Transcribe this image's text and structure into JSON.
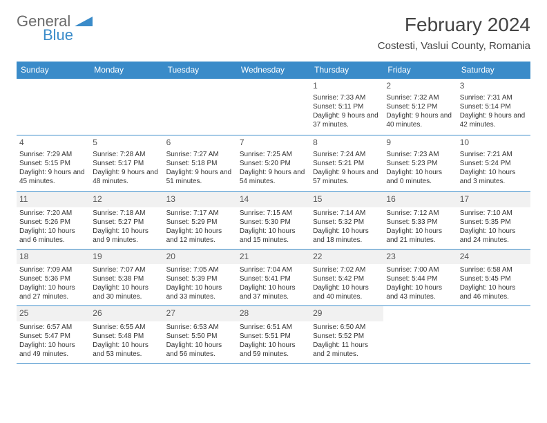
{
  "logo": {
    "top": "General",
    "bottom": "Blue"
  },
  "title": "February 2024",
  "location": "Costesti, Vaslui County, Romania",
  "colors": {
    "header_bg": "#3a8bc9",
    "header_text": "#ffffff",
    "border": "#3a8bc9",
    "text": "#333333",
    "logo_gray": "#6b6b6b",
    "logo_blue": "#3a8bc9",
    "alt_bg": "#f1f1f1"
  },
  "weekdays": [
    "Sunday",
    "Monday",
    "Tuesday",
    "Wednesday",
    "Thursday",
    "Friday",
    "Saturday"
  ],
  "weeks": [
    [
      null,
      null,
      null,
      null,
      {
        "n": "1",
        "sr": "7:33 AM",
        "ss": "5:11 PM",
        "dl": "9 hours and 37 minutes."
      },
      {
        "n": "2",
        "sr": "7:32 AM",
        "ss": "5:12 PM",
        "dl": "9 hours and 40 minutes."
      },
      {
        "n": "3",
        "sr": "7:31 AM",
        "ss": "5:14 PM",
        "dl": "9 hours and 42 minutes."
      }
    ],
    [
      {
        "n": "4",
        "sr": "7:29 AM",
        "ss": "5:15 PM",
        "dl": "9 hours and 45 minutes."
      },
      {
        "n": "5",
        "sr": "7:28 AM",
        "ss": "5:17 PM",
        "dl": "9 hours and 48 minutes."
      },
      {
        "n": "6",
        "sr": "7:27 AM",
        "ss": "5:18 PM",
        "dl": "9 hours and 51 minutes."
      },
      {
        "n": "7",
        "sr": "7:25 AM",
        "ss": "5:20 PM",
        "dl": "9 hours and 54 minutes."
      },
      {
        "n": "8",
        "sr": "7:24 AM",
        "ss": "5:21 PM",
        "dl": "9 hours and 57 minutes."
      },
      {
        "n": "9",
        "sr": "7:23 AM",
        "ss": "5:23 PM",
        "dl": "10 hours and 0 minutes."
      },
      {
        "n": "10",
        "sr": "7:21 AM",
        "ss": "5:24 PM",
        "dl": "10 hours and 3 minutes."
      }
    ],
    [
      {
        "n": "11",
        "sr": "7:20 AM",
        "ss": "5:26 PM",
        "dl": "10 hours and 6 minutes."
      },
      {
        "n": "12",
        "sr": "7:18 AM",
        "ss": "5:27 PM",
        "dl": "10 hours and 9 minutes."
      },
      {
        "n": "13",
        "sr": "7:17 AM",
        "ss": "5:29 PM",
        "dl": "10 hours and 12 minutes."
      },
      {
        "n": "14",
        "sr": "7:15 AM",
        "ss": "5:30 PM",
        "dl": "10 hours and 15 minutes."
      },
      {
        "n": "15",
        "sr": "7:14 AM",
        "ss": "5:32 PM",
        "dl": "10 hours and 18 minutes."
      },
      {
        "n": "16",
        "sr": "7:12 AM",
        "ss": "5:33 PM",
        "dl": "10 hours and 21 minutes."
      },
      {
        "n": "17",
        "sr": "7:10 AM",
        "ss": "5:35 PM",
        "dl": "10 hours and 24 minutes."
      }
    ],
    [
      {
        "n": "18",
        "sr": "7:09 AM",
        "ss": "5:36 PM",
        "dl": "10 hours and 27 minutes."
      },
      {
        "n": "19",
        "sr": "7:07 AM",
        "ss": "5:38 PM",
        "dl": "10 hours and 30 minutes."
      },
      {
        "n": "20",
        "sr": "7:05 AM",
        "ss": "5:39 PM",
        "dl": "10 hours and 33 minutes."
      },
      {
        "n": "21",
        "sr": "7:04 AM",
        "ss": "5:41 PM",
        "dl": "10 hours and 37 minutes."
      },
      {
        "n": "22",
        "sr": "7:02 AM",
        "ss": "5:42 PM",
        "dl": "10 hours and 40 minutes."
      },
      {
        "n": "23",
        "sr": "7:00 AM",
        "ss": "5:44 PM",
        "dl": "10 hours and 43 minutes."
      },
      {
        "n": "24",
        "sr": "6:58 AM",
        "ss": "5:45 PM",
        "dl": "10 hours and 46 minutes."
      }
    ],
    [
      {
        "n": "25",
        "sr": "6:57 AM",
        "ss": "5:47 PM",
        "dl": "10 hours and 49 minutes."
      },
      {
        "n": "26",
        "sr": "6:55 AM",
        "ss": "5:48 PM",
        "dl": "10 hours and 53 minutes."
      },
      {
        "n": "27",
        "sr": "6:53 AM",
        "ss": "5:50 PM",
        "dl": "10 hours and 56 minutes."
      },
      {
        "n": "28",
        "sr": "6:51 AM",
        "ss": "5:51 PM",
        "dl": "10 hours and 59 minutes."
      },
      {
        "n": "29",
        "sr": "6:50 AM",
        "ss": "5:52 PM",
        "dl": "11 hours and 2 minutes."
      },
      null,
      null
    ]
  ],
  "labels": {
    "sunrise": "Sunrise: ",
    "sunset": "Sunset: ",
    "daylight": "Daylight: "
  },
  "alt_rows": [
    2,
    3,
    4
  ]
}
